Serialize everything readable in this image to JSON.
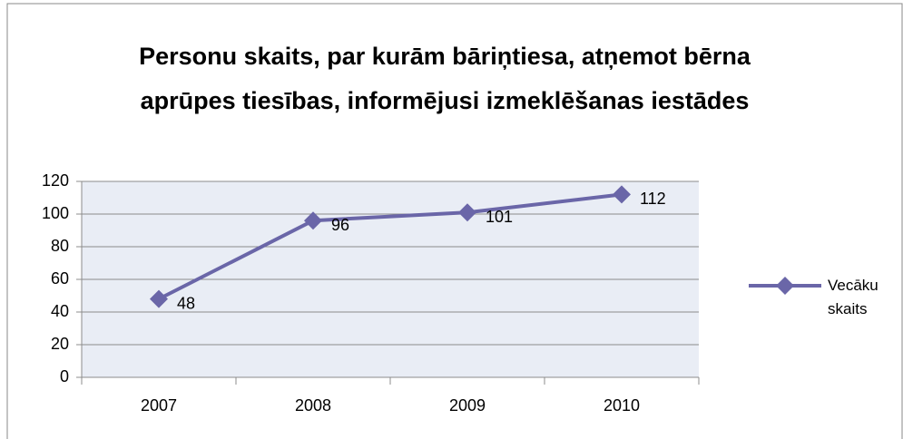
{
  "chart_data": {
    "type": "line",
    "title": "Personu skaits, par kurām bāriņtiesa, atņemot bērna aprūpes tiesības, informējusi izmeklēšanas iestādes",
    "categories": [
      "2007",
      "2008",
      "2009",
      "2010"
    ],
    "series": [
      {
        "name": "Vecāku skaits",
        "color": "#6a66a8",
        "values": [
          48,
          96,
          101,
          112
        ]
      }
    ],
    "ylim": [
      0,
      120
    ],
    "yticks": [
      0,
      20,
      40,
      60,
      80,
      100,
      120
    ],
    "grid": true,
    "legend": "right"
  }
}
